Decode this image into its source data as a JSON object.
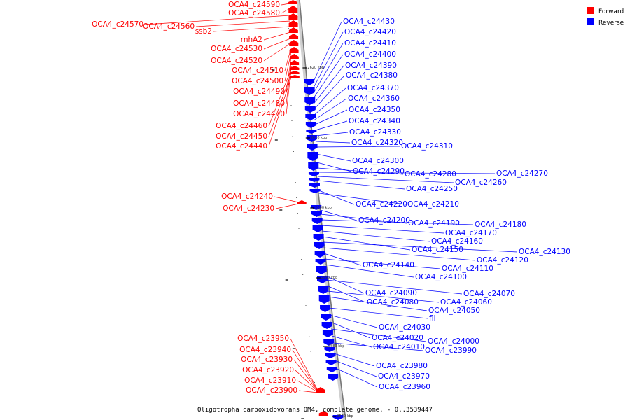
{
  "caption": "Oligotropha carboxidovorans OM4, complete genome. - 0..3539447",
  "legend": [
    {
      "label": "Forward",
      "color": "#ff0000"
    },
    {
      "label": "Reverse",
      "color": "#0000ff"
    }
  ],
  "colors": {
    "forward": "#ff0000",
    "reverse": "#0000ff",
    "backbone": "#999999"
  },
  "ticks": [
    "2620 kbp",
    "2610 kbp",
    "2600 kbp",
    "2590 kbp",
    "2580 kbp",
    "2570 kbp"
  ],
  "forward_genes": [
    "OCA4_c24590",
    "OCA4_c24580",
    "OCA4_c24570",
    "OCA4_c24560",
    "ssb2",
    "rnhA2",
    "OCA4_c24530",
    "OCA4_c24520",
    "OCA4_c24510",
    "OCA4_c24500",
    "OCA4_c24490",
    "OCA4_c24480",
    "OCA4_c24470",
    "OCA4_c24460",
    "OCA4_c24450",
    "OCA4_c24440",
    "OCA4_c24240",
    "OCA4_c24230",
    "OCA4_c23950",
    "OCA4_c23940",
    "OCA4_c23930",
    "OCA4_c23920",
    "OCA4_c23910",
    "OCA4_c23900"
  ],
  "reverse_genes": [
    "OCA4_c24430",
    "OCA4_c24420",
    "OCA4_c24410",
    "OCA4_c24400",
    "OCA4_c24390",
    "OCA4_c24380",
    "OCA4_c24370",
    "OCA4_c24360",
    "OCA4_c24350",
    "OCA4_c24340",
    "OCA4_c24330",
    "OCA4_c24320",
    "OCA4_c24310",
    "OCA4_c24300",
    "OCA4_c24290",
    "OCA4_c24280",
    "OCA4_c24270",
    "OCA4_c24260",
    "OCA4_c24250",
    "OCA4_c24220",
    "OCA4_c24210",
    "OCA4_c24200",
    "OCA4_c24190",
    "OCA4_c24180",
    "OCA4_c24170",
    "OCA4_c24160",
    "OCA4_c24150",
    "OCA4_c24130",
    "OCA4_c24120",
    "OCA4_c24140",
    "OCA4_c24110",
    "OCA4_c24100",
    "OCA4_c24090",
    "OCA4_c24070",
    "OCA4_c24080",
    "OCA4_c24060",
    "OCA4_c24050",
    "fll",
    "OCA4_c24030",
    "OCA4_c24020",
    "OCA4_c24000",
    "OCA4_c24010",
    "OCA4_c23990",
    "OCA4_c23980",
    "OCA4_c23970",
    "OCA4_c23960"
  ]
}
